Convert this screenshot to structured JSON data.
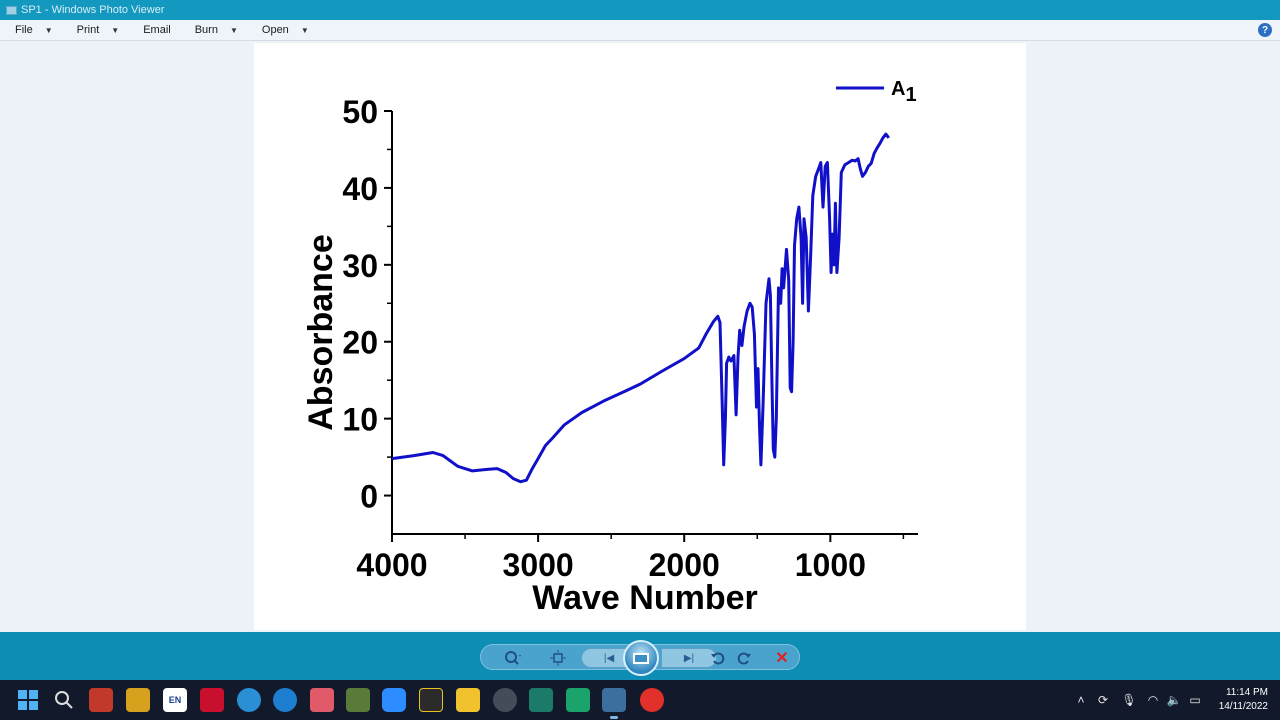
{
  "window": {
    "title": "SP1 - Windows Photo Viewer"
  },
  "menu": {
    "file": "File",
    "print": "Print",
    "email": "Email",
    "burn": "Burn",
    "open": "Open",
    "help": "?"
  },
  "chart_data": {
    "type": "line",
    "xlabel": "Wave Number",
    "ylabel": "Absorbance",
    "xlim": [
      4000,
      400
    ],
    "ylim": [
      -5,
      50
    ],
    "xticks": [
      4000,
      3000,
      2000,
      1000
    ],
    "yticks": [
      0,
      10,
      20,
      30,
      40,
      50
    ],
    "legend_position": "top-right",
    "series": [
      {
        "name": "A1",
        "color": "#1010c8",
        "points": [
          [
            4000,
            4.8
          ],
          [
            3850,
            5.2
          ],
          [
            3720,
            5.6
          ],
          [
            3650,
            5.2
          ],
          [
            3550,
            3.8
          ],
          [
            3450,
            3.2
          ],
          [
            3350,
            3.4
          ],
          [
            3280,
            3.5
          ],
          [
            3220,
            3.0
          ],
          [
            3170,
            2.2
          ],
          [
            3120,
            1.8
          ],
          [
            3080,
            2.0
          ],
          [
            3040,
            3.5
          ],
          [
            3000,
            4.8
          ],
          [
            2950,
            6.5
          ],
          [
            2900,
            7.5
          ],
          [
            2820,
            9.2
          ],
          [
            2700,
            10.8
          ],
          [
            2550,
            12.3
          ],
          [
            2400,
            13.6
          ],
          [
            2300,
            14.5
          ],
          [
            2150,
            16.2
          ],
          [
            2000,
            17.8
          ],
          [
            1900,
            19.2
          ],
          [
            1850,
            21.0
          ],
          [
            1800,
            22.6
          ],
          [
            1770,
            23.3
          ],
          [
            1755,
            22.5
          ],
          [
            1740,
            12.0
          ],
          [
            1730,
            4.0
          ],
          [
            1718,
            10.0
          ],
          [
            1710,
            17.2
          ],
          [
            1695,
            18.0
          ],
          [
            1680,
            17.5
          ],
          [
            1660,
            18.2
          ],
          [
            1645,
            10.5
          ],
          [
            1632,
            18.0
          ],
          [
            1620,
            21.5
          ],
          [
            1605,
            19.5
          ],
          [
            1590,
            22.0
          ],
          [
            1570,
            24.0
          ],
          [
            1550,
            25.0
          ],
          [
            1535,
            24.5
          ],
          [
            1520,
            21.0
          ],
          [
            1505,
            11.5
          ],
          [
            1495,
            16.5
          ],
          [
            1485,
            9.0
          ],
          [
            1475,
            4.0
          ],
          [
            1460,
            12.0
          ],
          [
            1440,
            25.0
          ],
          [
            1420,
            28.2
          ],
          [
            1410,
            26.0
          ],
          [
            1400,
            15.0
          ],
          [
            1390,
            6.0
          ],
          [
            1380,
            5.0
          ],
          [
            1370,
            10.0
          ],
          [
            1355,
            27.0
          ],
          [
            1340,
            25.0
          ],
          [
            1330,
            29.5
          ],
          [
            1320,
            27.0
          ],
          [
            1300,
            32.0
          ],
          [
            1285,
            28.0
          ],
          [
            1275,
            14.0
          ],
          [
            1265,
            13.5
          ],
          [
            1255,
            20.0
          ],
          [
            1245,
            32.5
          ],
          [
            1230,
            36.0
          ],
          [
            1215,
            37.5
          ],
          [
            1200,
            33.5
          ],
          [
            1190,
            25.0
          ],
          [
            1180,
            36.0
          ],
          [
            1165,
            33.5
          ],
          [
            1150,
            24.0
          ],
          [
            1135,
            31.0
          ],
          [
            1120,
            39.0
          ],
          [
            1100,
            41.5
          ],
          [
            1080,
            42.5
          ],
          [
            1065,
            43.3
          ],
          [
            1050,
            37.5
          ],
          [
            1035,
            42.8
          ],
          [
            1020,
            43.3
          ],
          [
            1005,
            36.0
          ],
          [
            995,
            29.0
          ],
          [
            985,
            34.0
          ],
          [
            975,
            30.0
          ],
          [
            965,
            38.0
          ],
          [
            955,
            29.0
          ],
          [
            940,
            33.5
          ],
          [
            925,
            42.0
          ],
          [
            900,
            43.0
          ],
          [
            875,
            43.3
          ],
          [
            850,
            43.6
          ],
          [
            830,
            43.5
          ],
          [
            810,
            43.8
          ],
          [
            795,
            42.5
          ],
          [
            780,
            41.5
          ],
          [
            760,
            42.0
          ],
          [
            740,
            42.8
          ],
          [
            720,
            43.2
          ],
          [
            700,
            44.5
          ],
          [
            680,
            45.2
          ],
          [
            660,
            45.8
          ],
          [
            640,
            46.5
          ],
          [
            620,
            47.0
          ],
          [
            600,
            46.5
          ]
        ]
      }
    ]
  },
  "controls": {
    "zoom_icon": "zoom-icon",
    "fit_icon": "actual-size-icon",
    "prev_icon": "previous-icon",
    "slideshow_icon": "slideshow-icon",
    "next_icon": "next-icon",
    "rotate_ccw_icon": "rotate-counterclockwise-icon",
    "rotate_cw_icon": "rotate-clockwise-icon",
    "delete_icon": "delete-icon"
  },
  "taskbar": {
    "lang": "EN",
    "clock_time": "11:14 PM",
    "clock_date": "14/11/2022"
  }
}
